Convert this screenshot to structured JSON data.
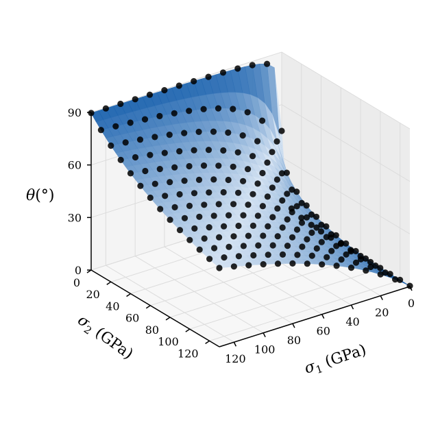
{
  "chart_data": {
    "type": "surface-scatter-3d",
    "title": "",
    "axes": {
      "x": {
        "symbol": "σ",
        "subscript": "1",
        "unit": " (GPa)",
        "range": [
          0,
          130
        ],
        "ticks": [
          0,
          20,
          40,
          60,
          80,
          100,
          120
        ]
      },
      "y": {
        "symbol": "σ",
        "subscript": "2",
        "unit": " (GPa)",
        "range": [
          0,
          130
        ],
        "ticks": [
          0,
          20,
          40,
          60,
          80,
          100,
          120
        ]
      },
      "z": {
        "symbol": "θ",
        "unit": "(°)",
        "range": [
          0,
          90
        ],
        "ticks": [
          0,
          30,
          60,
          90
        ]
      }
    },
    "grid": true,
    "surface_colormap": "Blues",
    "marker_color": "#000000",
    "grid_sampling": {
      "sigma1": [
        0,
        10,
        20,
        30,
        40,
        50,
        60,
        70,
        80,
        90,
        100,
        110,
        120,
        130
      ],
      "sigma2": [
        0,
        10,
        20,
        30,
        40,
        50,
        60,
        70,
        80,
        90,
        100,
        110,
        120,
        130
      ]
    },
    "relation": "theta = 45 + 45 * (sigma1 - sigma2) / (sigma1 + sigma2) (saddle surface, θ from 0° to 90°)"
  }
}
